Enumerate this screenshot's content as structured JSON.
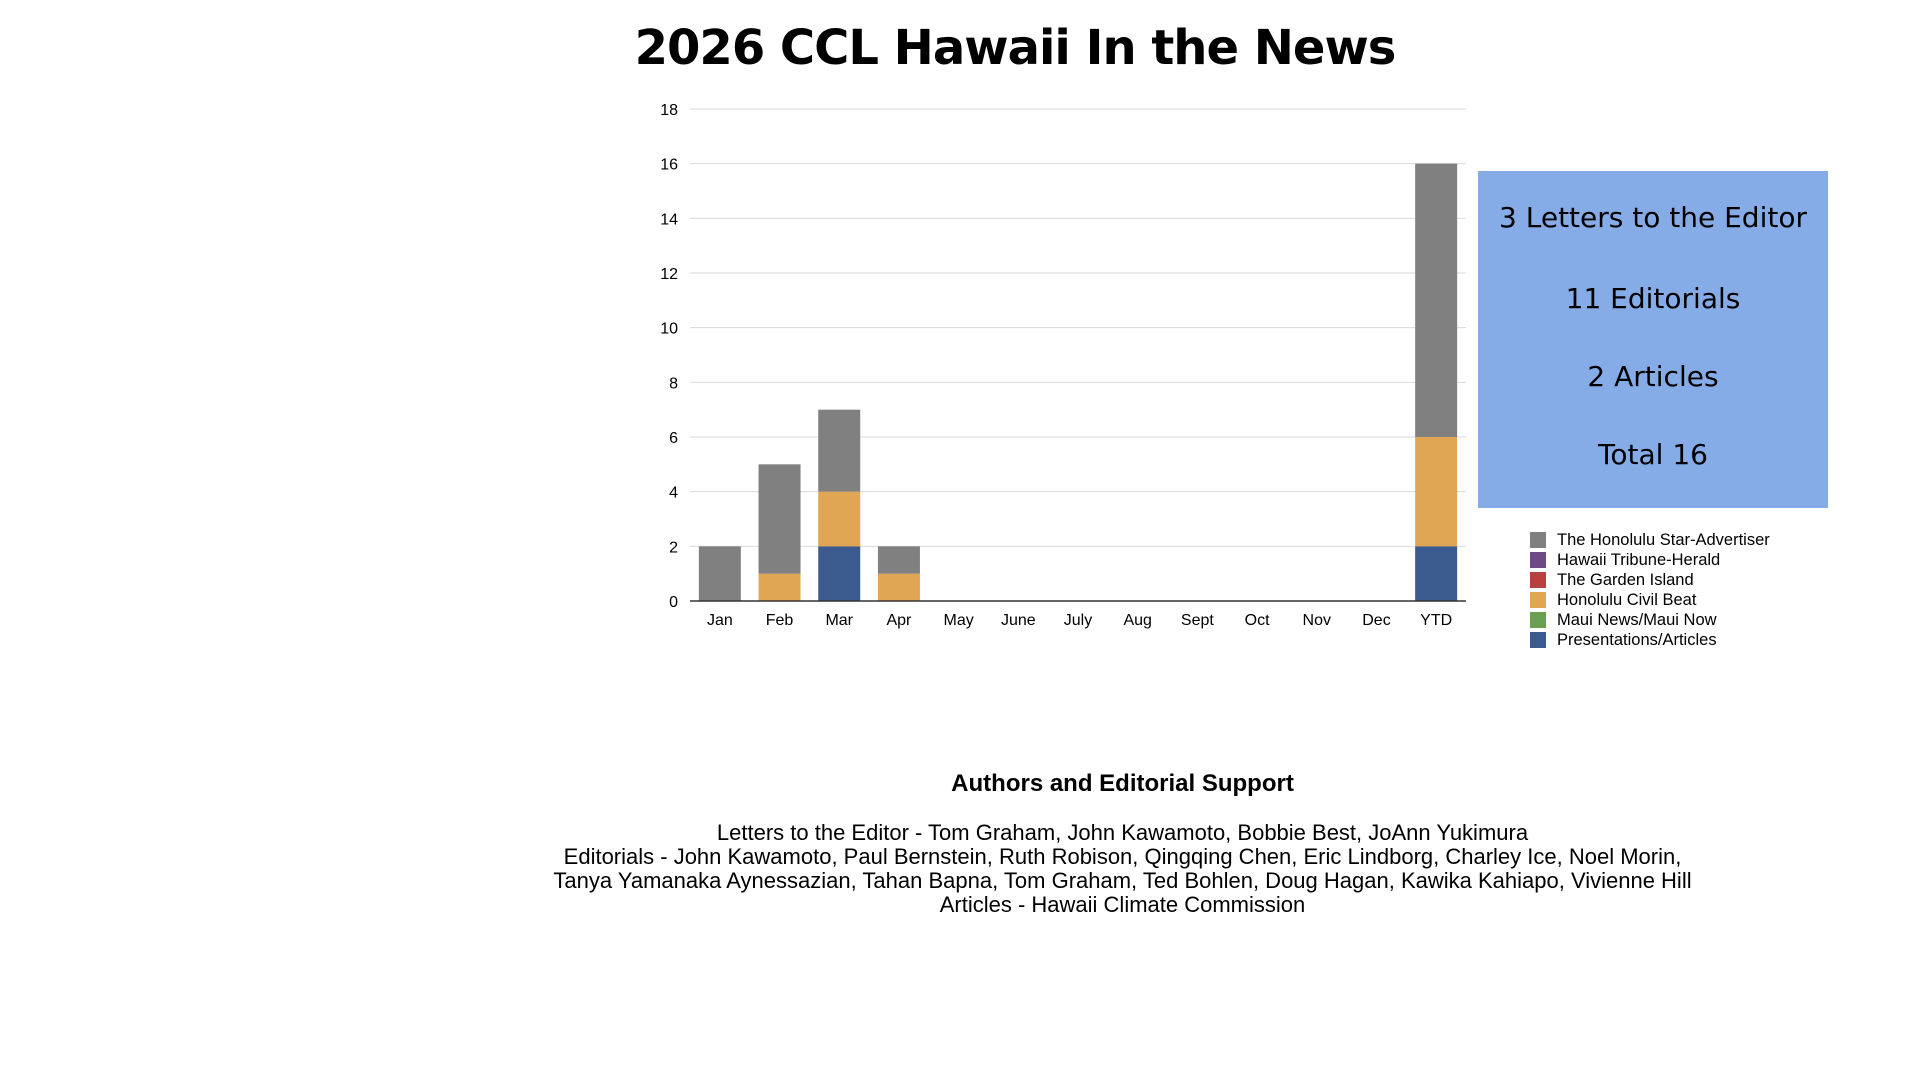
{
  "chart_data": {
    "type": "bar",
    "stacked": true,
    "title": "2026 CCL Hawaii In the News",
    "categories": [
      "Jan",
      "Feb",
      "Mar",
      "Apr",
      "May",
      "June",
      "July",
      "Aug",
      "Sept",
      "Oct",
      "Nov",
      "Dec",
      "YTD"
    ],
    "series": [
      {
        "name": "Presentations/Articles",
        "color": "#3b5a8e",
        "values": [
          0,
          0,
          2,
          0,
          0,
          0,
          0,
          0,
          0,
          0,
          0,
          0,
          2
        ]
      },
      {
        "name": "Maui News/Maui Now",
        "color": "#6aa050",
        "values": [
          0,
          0,
          0,
          0,
          0,
          0,
          0,
          0,
          0,
          0,
          0,
          0,
          0
        ]
      },
      {
        "name": "Honolulu Civil Beat",
        "color": "#e0a654",
        "values": [
          0,
          1,
          2,
          1,
          0,
          0,
          0,
          0,
          0,
          0,
          0,
          0,
          4
        ]
      },
      {
        "name": "The Garden Island",
        "color": "#b84040",
        "values": [
          0,
          0,
          0,
          0,
          0,
          0,
          0,
          0,
          0,
          0,
          0,
          0,
          0
        ]
      },
      {
        "name": "Hawaii Tribune-Herald",
        "color": "#6b4a85",
        "values": [
          0,
          0,
          0,
          0,
          0,
          0,
          0,
          0,
          0,
          0,
          0,
          0,
          0
        ]
      },
      {
        "name": "The Honolulu Star-Advertiser",
        "color": "#808080",
        "values": [
          2,
          4,
          3,
          1,
          0,
          0,
          0,
          0,
          0,
          0,
          0,
          0,
          10
        ]
      }
    ],
    "legend_order": [
      "The Honolulu Star-Advertiser",
      "Hawaii Tribune-Herald",
      "The Garden Island",
      "Honolulu Civil Beat",
      "Maui News/Maui Now",
      "Presentations/Articles"
    ],
    "ylim": [
      0,
      18
    ],
    "yticks": [
      0,
      2,
      4,
      6,
      8,
      10,
      12,
      14,
      16,
      18
    ],
    "xlabel": "",
    "ylabel": "",
    "grid": true,
    "legend_position": "right"
  },
  "summary": {
    "background": "#86ace8",
    "letters": "3 Letters to the Editor",
    "editorials": "11 Editorials",
    "articles": "2 Articles",
    "total": "Total 16"
  },
  "credits": {
    "heading": "Authors and Editorial Support",
    "lines": [
      "Letters to the Editor - Tom Graham, John Kawamoto, Bobbie Best, JoAnn Yukimura",
      "Editorials -  John Kawamoto, Paul Bernstein, Ruth Robison, Qingqing Chen, Eric Lindborg, Charley Ice, Noel Morin,",
      "Tanya Yamanaka Aynessazian, Tahan Bapna, Tom Graham, Ted Bohlen, Doug Hagan, Kawika Kahiapo, Vivienne Hill",
      "Articles - Hawaii Climate Commission"
    ]
  }
}
